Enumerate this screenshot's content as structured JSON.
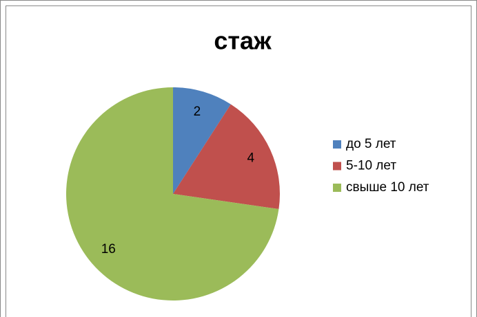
{
  "chart_data": {
    "type": "pie",
    "title": "стаж",
    "categories": [
      "до 5 лет",
      "5-10 лет",
      "свыше 10 лет"
    ],
    "values": [
      2,
      4,
      16
    ],
    "colors": [
      "#4f81bd",
      "#c0504d",
      "#9bbb59"
    ],
    "legend": "right"
  }
}
